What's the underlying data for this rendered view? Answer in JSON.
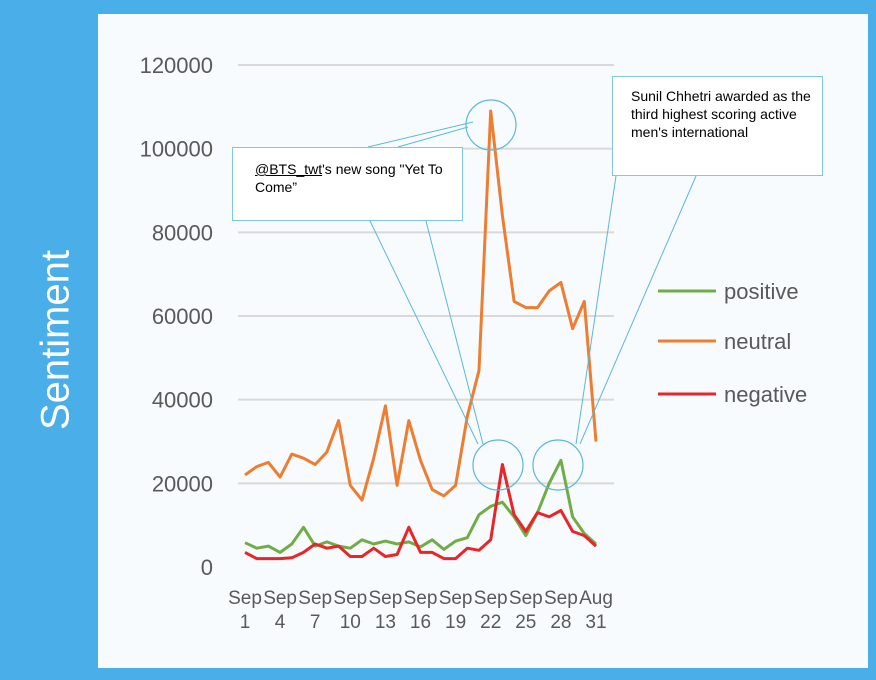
{
  "y_axis_title": "Sentiment",
  "callouts": {
    "bts_handle": "@BTS_twt",
    "bts_text": "'s new song \"Yet To Come”",
    "chhetri_text": "Sunil Chhetri awarded as the third highest scoring active men's international"
  },
  "chart_data": {
    "type": "line",
    "xlabel": "",
    "ylabel": "Sentiment",
    "ylim": [
      0,
      120000
    ],
    "yticks": [
      0,
      20000,
      40000,
      60000,
      80000,
      100000,
      120000
    ],
    "grid": true,
    "legend": "right",
    "x_tick_labels": [
      {
        "top": "Sep",
        "bottom": "1"
      },
      {
        "top": "Sep",
        "bottom": "4"
      },
      {
        "top": "Sep",
        "bottom": "7"
      },
      {
        "top": "Sep",
        "bottom": "10"
      },
      {
        "top": "Sep",
        "bottom": "13"
      },
      {
        "top": "Sep",
        "bottom": "16"
      },
      {
        "top": "Sep",
        "bottom": "19"
      },
      {
        "top": "Sep",
        "bottom": "22"
      },
      {
        "top": "Sep",
        "bottom": "25"
      },
      {
        "top": "Sep",
        "bottom": "28"
      },
      {
        "top": "Aug",
        "bottom": "31"
      }
    ],
    "series": [
      {
        "name": "positive",
        "color": "#70ad47",
        "values": [
          5800,
          4500,
          5000,
          3500,
          5500,
          9500,
          5000,
          6000,
          5000,
          4500,
          6500,
          5500,
          6200,
          5500,
          6000,
          4800,
          6500,
          4200,
          6200,
          7000,
          12500,
          14500,
          15500,
          12000,
          7500,
          13000,
          20000,
          25500,
          12000,
          8000,
          5500
        ]
      },
      {
        "name": "neutral",
        "color": "#ed7d31",
        "values": [
          22000,
          24000,
          25000,
          21500,
          27000,
          26000,
          24500,
          27500,
          35000,
          19500,
          16000,
          26000,
          38500,
          19500,
          35000,
          25500,
          18500,
          17000,
          19500,
          36000,
          47000,
          109000,
          84000,
          63500,
          62000,
          62000,
          66000,
          68000,
          57000,
          63500,
          30000
        ]
      },
      {
        "name": "negative",
        "color": "#e8262a",
        "values": [
          3500,
          2000,
          2000,
          2000,
          2200,
          3500,
          5500,
          4500,
          5000,
          2500,
          2500,
          4500,
          2500,
          3000,
          9500,
          3500,
          3500,
          2000,
          2000,
          4500,
          4000,
          6500,
          24500,
          12500,
          8500,
          13000,
          12000,
          13500,
          8500,
          7500,
          5000
        ]
      }
    ]
  }
}
